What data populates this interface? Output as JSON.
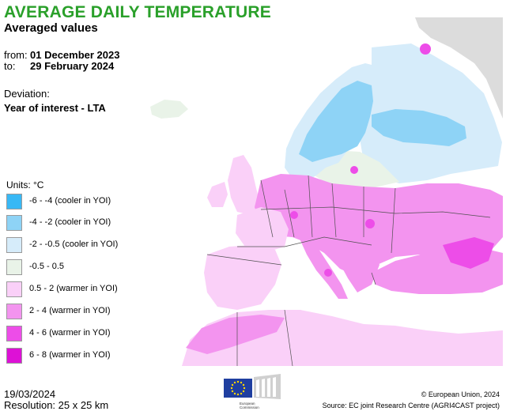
{
  "title": "AVERAGE DAILY TEMPERATURE",
  "subtitle": "Averaged values",
  "period": {
    "from_label": "from:",
    "from_value": "01 December 2023",
    "to_label": "to:",
    "to_value": "29 February 2024"
  },
  "deviation_label": "Deviation:",
  "deviation_value": "Year of interest - LTA",
  "legend": {
    "units": "Units: °C",
    "items": [
      {
        "label": "-6 - -4 (cooler in YOI)",
        "color": "#38b8f5"
      },
      {
        "label": "-4 - -2 (cooler in YOI)",
        "color": "#8ed3f6"
      },
      {
        "label": "-2 - -0.5 (cooler in YOI)",
        "color": "#d6ecfa"
      },
      {
        "label": "-0.5 - 0.5",
        "color": "#e9f3e8"
      },
      {
        "label": "0.5 - 2 (warmer in YOI)",
        "color": "#fad0f8"
      },
      {
        "label": "2 - 4 (warmer in YOI)",
        "color": "#f394ef"
      },
      {
        "label": "4 - 6 (warmer in YOI)",
        "color": "#ed4de8"
      },
      {
        "label": "6 - 8 (warmer in YOI)",
        "color": "#dd11d6"
      }
    ]
  },
  "footer": {
    "date": "19/03/2024",
    "resolution": "Resolution: 25 x 25 km",
    "copyright": "© European Union, 2024",
    "source": "Source: EC joint Research Centre (AGRI4CAST project)",
    "logo_text": "European Commission"
  },
  "colors": {
    "title": "#2aa02a",
    "sea": "#ffffff",
    "no_data": "#dcdcdc",
    "border": "#505050"
  }
}
